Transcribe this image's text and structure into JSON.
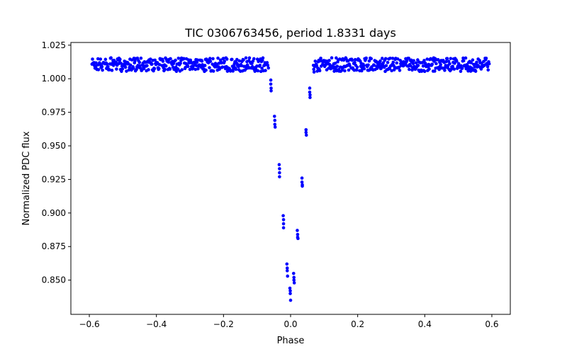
{
  "chart_data": {
    "type": "scatter",
    "title": "TIC 0306763456, period 1.8331 days",
    "xlabel": "Phase",
    "ylabel": "Normalized PDC flux",
    "xlim": [
      -0.655,
      0.655
    ],
    "ylim": [
      0.8245,
      1.027
    ],
    "x_ticks": [
      -0.6,
      -0.4,
      -0.2,
      0.0,
      0.2,
      0.4,
      0.6
    ],
    "x_tick_labels": [
      "−0.6",
      "−0.4",
      "−0.2",
      "0.0",
      "0.2",
      "0.4",
      "0.6"
    ],
    "y_ticks": [
      0.85,
      0.875,
      0.9,
      0.925,
      0.95,
      0.975,
      1.0,
      1.025
    ],
    "y_tick_labels": [
      "0.850",
      "0.875",
      "0.900",
      "0.925",
      "0.950",
      "0.975",
      "1.000",
      "1.025"
    ],
    "marker_color": "#0000ff",
    "series": [
      {
        "name": "PDC flux",
        "points": [
          [
            -0.07,
            1.012
          ],
          [
            -0.068,
            1.01
          ],
          [
            -0.066,
            1.008
          ],
          [
            -0.059,
            0.999
          ],
          [
            -0.059,
            0.996
          ],
          [
            -0.058,
            0.993
          ],
          [
            -0.058,
            0.991
          ],
          [
            -0.048,
            0.972
          ],
          [
            -0.047,
            0.969
          ],
          [
            -0.047,
            0.966
          ],
          [
            -0.046,
            0.964
          ],
          [
            -0.034,
            0.936
          ],
          [
            -0.033,
            0.933
          ],
          [
            -0.033,
            0.93
          ],
          [
            -0.033,
            0.927
          ],
          [
            -0.022,
            0.898
          ],
          [
            -0.021,
            0.895
          ],
          [
            -0.021,
            0.892
          ],
          [
            -0.021,
            0.889
          ],
          [
            -0.011,
            0.862
          ],
          [
            -0.01,
            0.859
          ],
          [
            -0.01,
            0.857
          ],
          [
            -0.009,
            0.853
          ],
          [
            -0.002,
            0.844
          ],
          [
            -0.001,
            0.842
          ],
          [
            -0.001,
            0.84
          ],
          [
            0.0,
            0.835
          ],
          [
            0.009,
            0.855
          ],
          [
            0.01,
            0.852
          ],
          [
            0.01,
            0.85
          ],
          [
            0.011,
            0.848
          ],
          [
            0.02,
            0.887
          ],
          [
            0.021,
            0.884
          ],
          [
            0.021,
            0.882
          ],
          [
            0.022,
            0.881
          ],
          [
            0.034,
            0.926
          ],
          [
            0.034,
            0.923
          ],
          [
            0.035,
            0.921
          ],
          [
            0.035,
            0.92
          ],
          [
            0.046,
            0.962
          ],
          [
            0.046,
            0.96
          ],
          [
            0.047,
            0.958
          ],
          [
            0.057,
            0.993
          ],
          [
            0.057,
            0.99
          ],
          [
            0.058,
            0.988
          ],
          [
            0.058,
            0.986
          ],
          [
            0.068,
            1.01
          ],
          [
            0.069,
            1.007
          ],
          [
            0.07,
            1.005
          ]
        ]
      }
    ],
    "baseline": {
      "phase_ranges": [
        [
          -0.592,
          -0.072
        ],
        [
          0.072,
          0.592
        ]
      ],
      "center": 1.0105,
      "scatter": 0.0055,
      "count": 700,
      "note": "dense out-of-eclipse points between 1.006 and 1.016"
    }
  }
}
